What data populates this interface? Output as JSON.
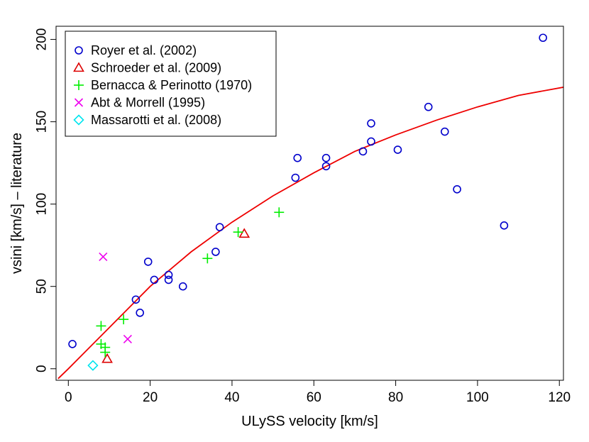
{
  "chart_data": {
    "type": "scatter",
    "xlabel": "ULySS velocity [km/s]",
    "ylabel": "vsini [km/s] – literature",
    "xlim": [
      -3,
      121
    ],
    "ylim": [
      -7,
      208
    ],
    "xticks": [
      0,
      20,
      40,
      60,
      80,
      100,
      120
    ],
    "yticks": [
      0,
      50,
      100,
      150,
      200
    ],
    "legend_position": "top-left",
    "series": [
      {
        "name": "Royer et al. (2002)",
        "marker": "circle",
        "color": "#0000cc",
        "points": [
          [
            1,
            15
          ],
          [
            16.5,
            42
          ],
          [
            17.5,
            34
          ],
          [
            19.5,
            65
          ],
          [
            21,
            54
          ],
          [
            24.5,
            57
          ],
          [
            24.5,
            54
          ],
          [
            28,
            50
          ],
          [
            36,
            71
          ],
          [
            37,
            86
          ],
          [
            55.5,
            116
          ],
          [
            56,
            128
          ],
          [
            63,
            128
          ],
          [
            63,
            123
          ],
          [
            72,
            132
          ],
          [
            74,
            138
          ],
          [
            74,
            149
          ],
          [
            80.5,
            133
          ],
          [
            88,
            159
          ],
          [
            92,
            144
          ],
          [
            95,
            109
          ],
          [
            106.5,
            87
          ],
          [
            116,
            201
          ]
        ]
      },
      {
        "name": "Schroeder et al. (2009)",
        "marker": "triangle",
        "color": "#dd0000",
        "points": [
          [
            9.5,
            6
          ],
          [
            43,
            82
          ]
        ]
      },
      {
        "name": "Bernacca & Perinotto (1970)",
        "marker": "plus",
        "color": "#00ee00",
        "points": [
          [
            8,
            26
          ],
          [
            8,
            15
          ],
          [
            9,
            10
          ],
          [
            9,
            13
          ],
          [
            13.5,
            30
          ],
          [
            34,
            67
          ],
          [
            41.5,
            83
          ],
          [
            51.5,
            95
          ]
        ]
      },
      {
        "name": "Abt & Morrell (1995)",
        "marker": "cross",
        "color": "#ee00ee",
        "points": [
          [
            8.5,
            68
          ],
          [
            14.5,
            18
          ]
        ]
      },
      {
        "name": "Massarotti et al. (2008)",
        "marker": "diamond",
        "color": "#00e5ee",
        "points": [
          [
            6,
            2
          ]
        ]
      }
    ],
    "fit_curve": {
      "color": "#ee0000",
      "points": [
        [
          -2.5,
          -6
        ],
        [
          0,
          0
        ],
        [
          10,
          25
        ],
        [
          20,
          50
        ],
        [
          30,
          71
        ],
        [
          40,
          89
        ],
        [
          50,
          105
        ],
        [
          60,
          119
        ],
        [
          70,
          132
        ],
        [
          80,
          142
        ],
        [
          90,
          151
        ],
        [
          100,
          159
        ],
        [
          110,
          166
        ],
        [
          121,
          171
        ]
      ]
    }
  }
}
